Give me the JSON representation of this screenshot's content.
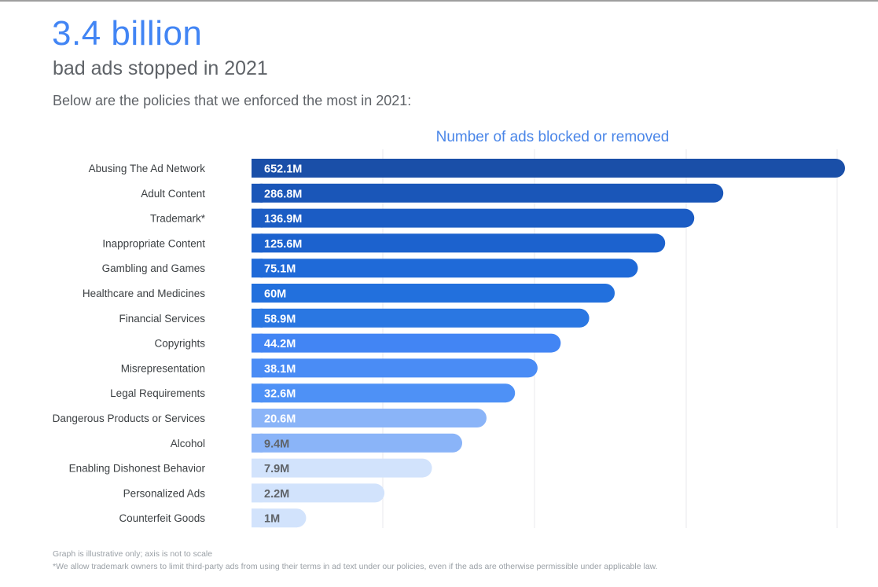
{
  "header": {
    "headline": "3.4 billion",
    "subheadline": "bad ads stopped in 2021",
    "intro": "Below are the policies that we enforced the most in 2021:"
  },
  "footnotes": {
    "scale_note": "Graph is illustrative only; axis is not to scale",
    "trademark_note": "*We allow trademark owners to limit third-party ads from using their terms in ad text under our policies, even if the ads are otherwise permissible under applicable law."
  },
  "chart_data": {
    "type": "bar",
    "orientation": "horizontal",
    "title": "Number of ads blocked or removed",
    "xlabel": "",
    "ylabel": "",
    "unit": "M",
    "axis_to_scale": false,
    "grid": true,
    "categories": [
      "Abusing The Ad Network",
      "Adult Content",
      "Trademark*",
      "Inappropriate Content",
      "Gambling and Games",
      "Healthcare and Medicines",
      "Financial Services",
      "Copyrights",
      "Misrepresentation",
      "Legal Requirements",
      "Dangerous Products or Services",
      "Alcohol",
      "Enabling Dishonest Behavior",
      "Personalized Ads",
      "Counterfeit Goods"
    ],
    "values": [
      652.1,
      286.8,
      136.9,
      125.6,
      75.1,
      60,
      58.9,
      44.2,
      38.1,
      32.6,
      20.6,
      9.4,
      7.9,
      2.2,
      1
    ],
    "value_labels": [
      "652.1M",
      "286.8M",
      "136.9M",
      "125.6M",
      "75.1M",
      "60M",
      "58.9M",
      "44.2M",
      "38.1M",
      "32.6M",
      "20.6M",
      "9.4M",
      "7.9M",
      "2.2M",
      "1M"
    ],
    "illustrative_bar_extent": [
      1.0,
      0.795,
      0.746,
      0.697,
      0.651,
      0.612,
      0.569,
      0.521,
      0.482,
      0.444,
      0.396,
      0.355,
      0.304,
      0.224,
      0.092
    ],
    "bar_colors": [
      "#1a4fa8",
      "#1a56b8",
      "#1b5cc4",
      "#1c62ce",
      "#1f6ad8",
      "#2270dd",
      "#2a77e2",
      "#4285f4",
      "#4a8cf5",
      "#4e91f6",
      "#8ab4f8",
      "#8ab4f8",
      "#d2e3fc",
      "#d2e3fc",
      "#d2e3fc"
    ],
    "label_colors": [
      "#ffffff",
      "#ffffff",
      "#ffffff",
      "#ffffff",
      "#ffffff",
      "#ffffff",
      "#ffffff",
      "#ffffff",
      "#ffffff",
      "#ffffff",
      "#ffffff",
      "#5f6368",
      "#5f6368",
      "#5f6368",
      "#5f6368"
    ]
  }
}
